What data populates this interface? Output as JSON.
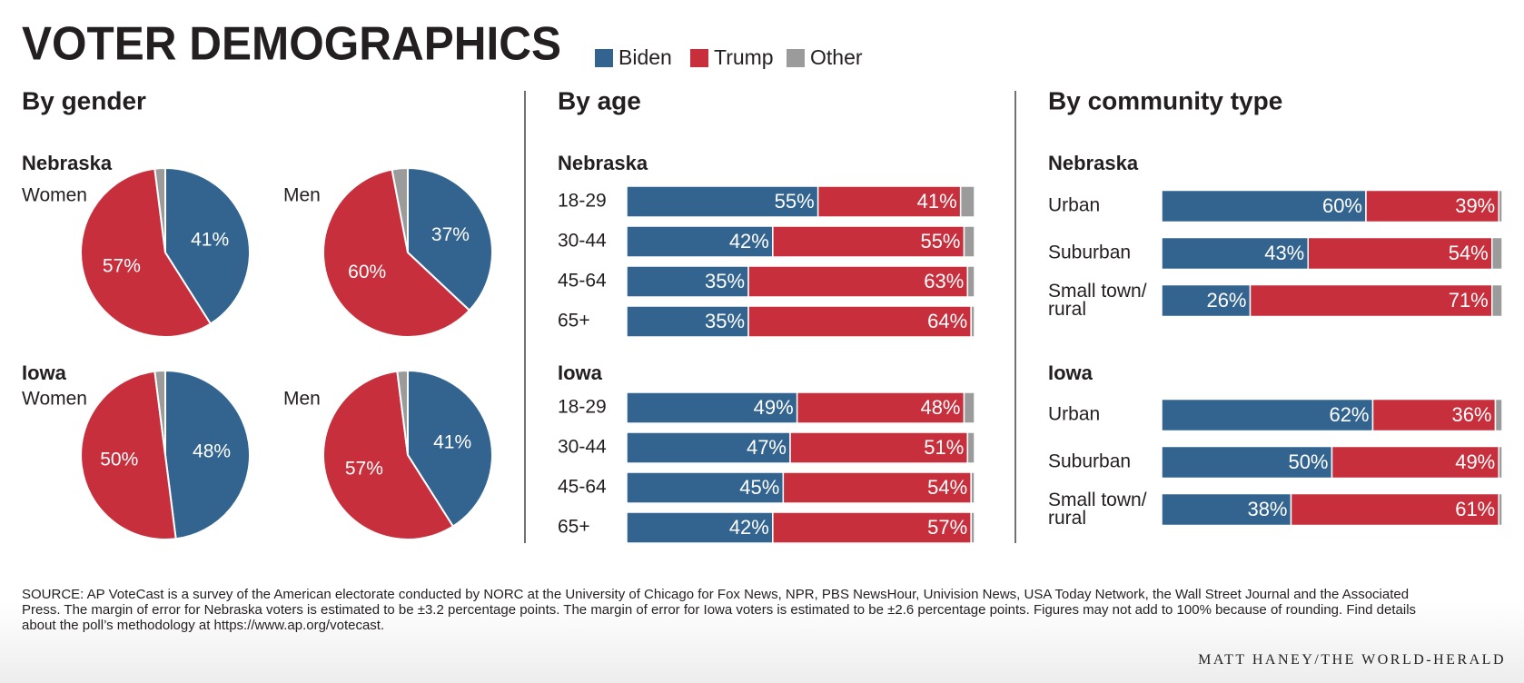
{
  "title": "VOTER DEMOGRAPHICS",
  "legend": [
    {
      "name": "Biden",
      "color": "#33648f"
    },
    {
      "name": "Trump",
      "color": "#c72f3c"
    },
    {
      "name": "Other",
      "color": "#9b9b9b"
    }
  ],
  "chart_data": [
    {
      "type": "pie",
      "title": "By gender",
      "groups": [
        {
          "name": "Nebraska",
          "charts": [
            {
              "label": "Women",
              "values": [
                41,
                57,
                2
              ],
              "value_labels": [
                "41%",
                "57%",
                null
              ]
            },
            {
              "label": "Men",
              "values": [
                37,
                60,
                3
              ],
              "value_labels": [
                "37%",
                "60%",
                null
              ]
            }
          ]
        },
        {
          "name": "Iowa",
          "charts": [
            {
              "label": "Women",
              "values": [
                48,
                50,
                2
              ],
              "value_labels": [
                "48%",
                "50%",
                null
              ]
            },
            {
              "label": "Men",
              "values": [
                41,
                57,
                2
              ],
              "value_labels": [
                "41%",
                "57%",
                null
              ]
            }
          ]
        }
      ]
    },
    {
      "type": "bar",
      "title": "By age",
      "xlim": [
        0,
        100
      ],
      "groups": [
        {
          "name": "Nebraska",
          "categories": [
            "18-29",
            "30-44",
            "45-64",
            "65+"
          ],
          "series": [
            {
              "values": [
                55,
                42,
                35,
                35
              ],
              "value_labels": [
                "55%",
                "42%",
                "35%",
                "35%"
              ]
            },
            {
              "values": [
                41,
                55,
                63,
                64
              ],
              "value_labels": [
                "41%",
                "55%",
                "63%",
                "64%"
              ]
            },
            {
              "values": [
                4,
                3,
                2,
                1
              ]
            }
          ]
        },
        {
          "name": "Iowa",
          "categories": [
            "18-29",
            "30-44",
            "45-64",
            "65+"
          ],
          "series": [
            {
              "values": [
                49,
                47,
                45,
                42
              ],
              "value_labels": [
                "49%",
                "47%",
                "45%",
                "42%"
              ]
            },
            {
              "values": [
                48,
                51,
                54,
                57
              ],
              "value_labels": [
                "48%",
                "51%",
                "54%",
                "57%"
              ]
            },
            {
              "values": [
                3,
                2,
                1,
                1
              ]
            }
          ]
        }
      ]
    },
    {
      "type": "bar",
      "title": "By community type",
      "xlim": [
        0,
        100
      ],
      "groups": [
        {
          "name": "Nebraska",
          "categories": [
            "Urban",
            "Suburban",
            "Small town/\nrural"
          ],
          "series": [
            {
              "values": [
                60,
                43,
                26
              ],
              "value_labels": [
                "60%",
                "43%",
                "26%"
              ]
            },
            {
              "values": [
                39,
                54,
                71
              ],
              "value_labels": [
                "39%",
                "54%",
                "71%"
              ]
            },
            {
              "values": [
                1,
                3,
                3
              ]
            }
          ]
        },
        {
          "name": "Iowa",
          "categories": [
            "Urban",
            "Suburban",
            "Small town/\nrural"
          ],
          "series": [
            {
              "values": [
                62,
                50,
                38
              ],
              "value_labels": [
                "62%",
                "50%",
                "38%"
              ]
            },
            {
              "values": [
                36,
                49,
                61
              ],
              "value_labels": [
                "36%",
                "49%",
                "61%"
              ]
            },
            {
              "values": [
                2,
                1,
                1
              ]
            }
          ]
        }
      ]
    }
  ],
  "source": "SOURCE: AP VoteCast is a survey of the American electorate conducted by NORC at the University of Chicago for Fox News, NPR, PBS NewsHour, Univision News, USA Today Network, the Wall Street Journal and the Associated Press. The margin of error for Nebraska voters is estimated to be ±3.2 percentage points. The margin of error for Iowa voters is estimated to be ±2.6 percentage points. Figures may not add to 100% because of rounding. Find details about the poll’s methodology at https://www.ap.org/votecast.",
  "credit": "MATT HANEY/THE WORLD-HERALD"
}
